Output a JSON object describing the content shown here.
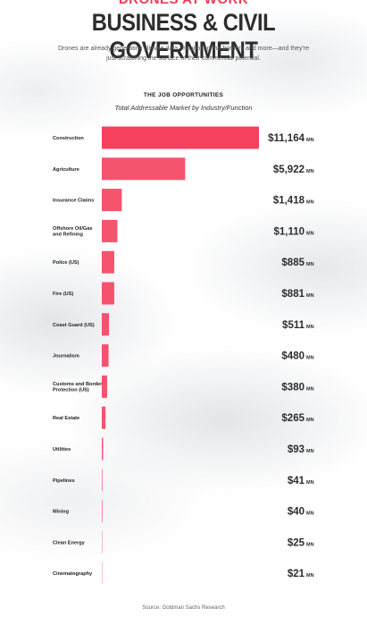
{
  "header": {
    "kicker": "DRONES AT WORK",
    "title": "BUSINESS & CIVIL GOVERNMENT",
    "subtitle": "Drones are already generating climate data, monitoring the borders and more—and they're just scratching the surface of their commercial potential."
  },
  "colors": {
    "accent": "#f5405e",
    "value_text": "#2d2d2d"
  },
  "chart_data": {
    "type": "bar",
    "orientation": "horizontal",
    "title": "THE JOB OPPORTUNITIES",
    "subtitle": "Total Addressable Market by Industry/Function",
    "unit": "MN",
    "categories": [
      "Construction",
      "Agriculture",
      "Insurance Claims",
      "Offshore Oil/Gas and Refining",
      "Police (US)",
      "Fire (US)",
      "Coast Guard (US)",
      "Journalism",
      "Customs and Border Protection (US)",
      "Real Estate",
      "Utilities",
      "Pipelines",
      "Mining",
      "Clean Energy",
      "Cinematography"
    ],
    "values": [
      11164,
      5922,
      1418,
      1110,
      885,
      881,
      511,
      480,
      380,
      265,
      93,
      41,
      40,
      25,
      21
    ],
    "value_labels": [
      "$11,164",
      "$5,922",
      "$1,418",
      "$1,110",
      "$885",
      "$881",
      "$511",
      "$480",
      "$380",
      "$265",
      "$93",
      "$41",
      "$40",
      "$25",
      "$21"
    ],
    "xlim": [
      0,
      11164
    ],
    "grid": false,
    "legend": "none"
  },
  "footer": {
    "source": "Source: Goldman Sachs Research"
  }
}
